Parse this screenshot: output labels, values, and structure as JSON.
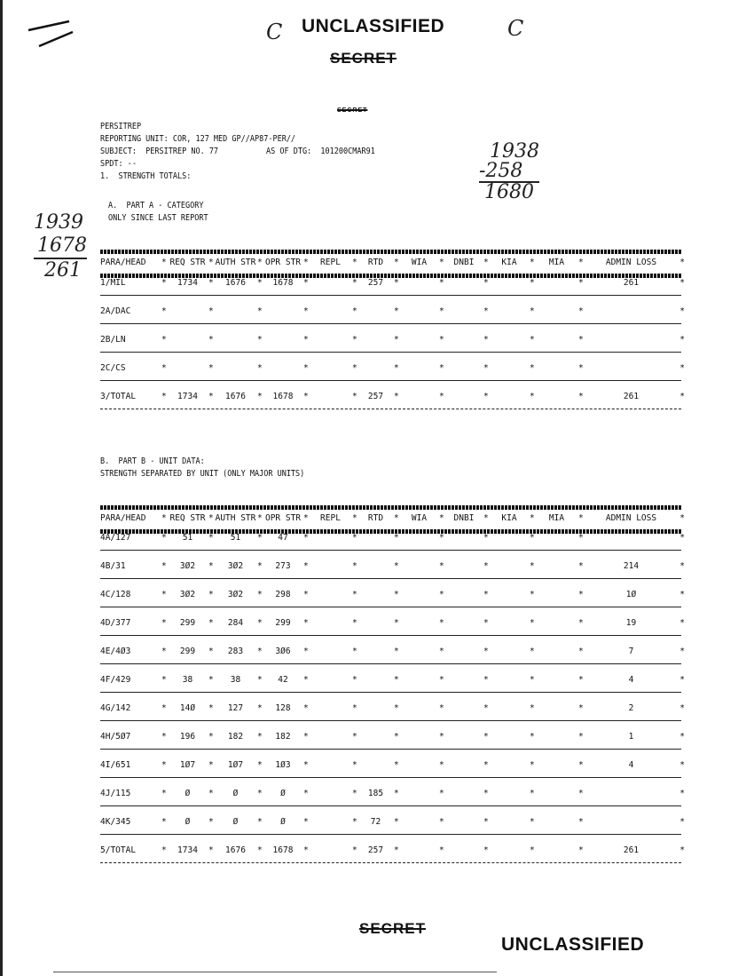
{
  "markings": {
    "top_classification": "UNCLASSIFIED",
    "top_secret": "SECRET",
    "inner_secret": "SECRET",
    "bottom_secret": "SECRET",
    "bottom_classification": "UNCLASSIFIED",
    "top_marks": [
      "C",
      "C"
    ]
  },
  "handwritten": {
    "left": [
      "1939",
      "1678",
      "261"
    ],
    "right": [
      "1938",
      "-258",
      "1680"
    ]
  },
  "header": {
    "type": "PERSITREP",
    "reporting_unit": "REPORTING UNIT: COR, 127 MED GP//AP87-PER//",
    "subject": "SUBJECT:  PERSITREP NO. 77",
    "as_of": "AS OF DTG:  101200CMAR91",
    "spdt": "SPDT: --",
    "section": "1.  STRENGTH TOTALS:"
  },
  "partA": {
    "title": "A.  PART A - CATEGORY",
    "subtitle": "ONLY SINCE LAST REPORT",
    "columns": [
      "PARA/HEAD",
      "REQ STR",
      "AUTH STR",
      "OPR STR",
      "REPL",
      "RTD",
      "WIA",
      "DNBI",
      "KIA",
      "MIA",
      "ADMIN LOSS"
    ],
    "rows": [
      [
        "1/MIL",
        "1734",
        "1676",
        "1678",
        "",
        "257",
        "",
        "",
        "",
        "",
        "261"
      ],
      [
        "2A/DAC",
        "",
        "",
        "",
        "",
        "",
        "",
        "",
        "",
        "",
        ""
      ],
      [
        "2B/LN",
        "",
        "",
        "",
        "",
        "",
        "",
        "",
        "",
        "",
        ""
      ],
      [
        "2C/CS",
        "",
        "",
        "",
        "",
        "",
        "",
        "",
        "",
        "",
        ""
      ],
      [
        "3/TOTAL",
        "1734",
        "1676",
        "1678",
        "",
        "257",
        "",
        "",
        "",
        "",
        "261"
      ]
    ]
  },
  "partB": {
    "title": "B.  PART B - UNIT DATA:",
    "subtitle": "STRENGTH SEPARATED BY UNIT (ONLY MAJOR UNITS)",
    "columns": [
      "PARA/HEAD",
      "REQ STR",
      "AUTH STR",
      "OPR STR",
      "REPL",
      "RTD",
      "WIA",
      "DNBI",
      "KIA",
      "MIA",
      "ADMIN LOSS"
    ],
    "rows": [
      [
        "4A/127",
        "51",
        "51",
        "47",
        "",
        "",
        "",
        "",
        "",
        "",
        ""
      ],
      [
        "4B/31",
        "3Ø2",
        "3Ø2",
        "273",
        "",
        "",
        "",
        "",
        "",
        "",
        "214"
      ],
      [
        "4C/128",
        "3Ø2",
        "3Ø2",
        "298",
        "",
        "",
        "",
        "",
        "",
        "",
        "1Ø"
      ],
      [
        "4D/377",
        "299",
        "284",
        "299",
        "",
        "",
        "",
        "",
        "",
        "",
        "19"
      ],
      [
        "4E/4Ø3",
        "299",
        "283",
        "3Ø6",
        "",
        "",
        "",
        "",
        "",
        "",
        "7"
      ],
      [
        "4F/429",
        "38",
        "38",
        "42",
        "",
        "",
        "",
        "",
        "",
        "",
        "4"
      ],
      [
        "4G/142",
        "14Ø",
        "127",
        "128",
        "",
        "",
        "",
        "",
        "",
        "",
        "2"
      ],
      [
        "4H/5Ø7",
        "196",
        "182",
        "182",
        "",
        "",
        "",
        "",
        "",
        "",
        "1"
      ],
      [
        "4I/651",
        "1Ø7",
        "1Ø7",
        "1Ø3",
        "",
        "",
        "",
        "",
        "",
        "",
        "4"
      ],
      [
        "4J/115",
        "Ø",
        "Ø",
        "Ø",
        "",
        "185",
        "",
        "",
        "",
        "",
        ""
      ],
      [
        "4K/345",
        "Ø",
        "Ø",
        "Ø",
        "",
        "72",
        "",
        "",
        "",
        "",
        ""
      ],
      [
        "5/TOTAL",
        "1734",
        "1676",
        "1678",
        "",
        "257",
        "",
        "",
        "",
        "",
        "261"
      ]
    ]
  }
}
